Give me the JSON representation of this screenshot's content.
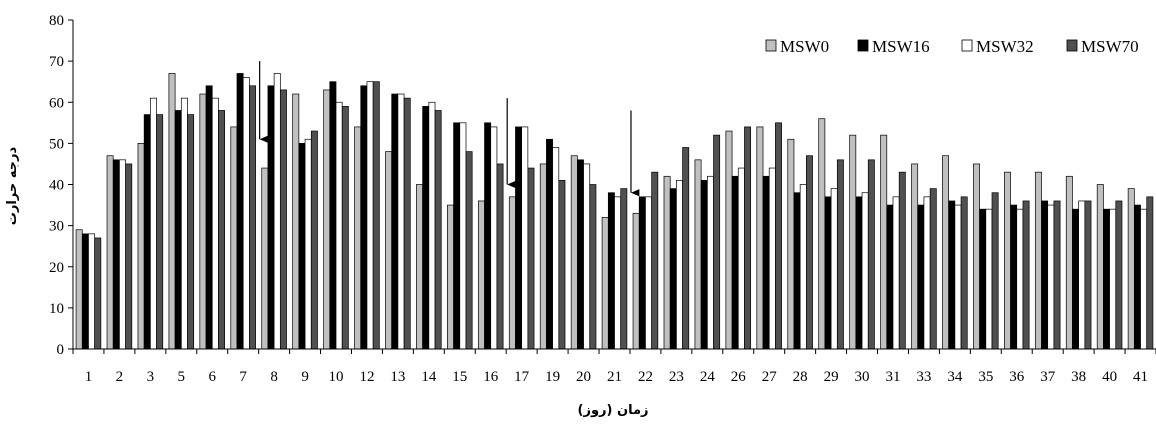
{
  "chart_data": {
    "type": "bar",
    "title": "",
    "xlabel": "زمان (روز)",
    "ylabel": "درجه حرارت",
    "ylim": [
      0,
      80
    ],
    "yticks": [
      0,
      10,
      20,
      30,
      40,
      50,
      60,
      70,
      80
    ],
    "grid": false,
    "legend_position": "top-right",
    "categories": [
      "1",
      "2",
      "3",
      "5",
      "6",
      "7",
      "8",
      "9",
      "10",
      "12",
      "13",
      "14",
      "15",
      "16",
      "17",
      "19",
      "20",
      "21",
      "22",
      "23",
      "24",
      "26",
      "27",
      "28",
      "29",
      "30",
      "31",
      "33",
      "34",
      "35",
      "36",
      "37",
      "38",
      "40",
      "41"
    ],
    "series": [
      {
        "name": "MSW0",
        "color": "#c0c0c0",
        "values": [
          29,
          47,
          50,
          67,
          62,
          54,
          44,
          62,
          63,
          54,
          48,
          40,
          35,
          36,
          37,
          45,
          47,
          32,
          33,
          42,
          46,
          53,
          54,
          51,
          56,
          52,
          52,
          45,
          47,
          45,
          43,
          43,
          42,
          40,
          39
        ]
      },
      {
        "name": "MSW16",
        "color": "#000000",
        "values": [
          28,
          46,
          57,
          58,
          64,
          67,
          64,
          50,
          65,
          64,
          62,
          59,
          55,
          55,
          54,
          51,
          46,
          38,
          37,
          39,
          41,
          42,
          42,
          38,
          37,
          37,
          35,
          35,
          36,
          34,
          35,
          36,
          34,
          34,
          35
        ]
      },
      {
        "name": "MSW32",
        "color": "#ffffff",
        "values": [
          28,
          46,
          61,
          61,
          61,
          66,
          67,
          51,
          60,
          65,
          62,
          60,
          55,
          54,
          54,
          49,
          45,
          37,
          37,
          41,
          42,
          44,
          44,
          40,
          39,
          38,
          37,
          37,
          35,
          34,
          34,
          35,
          36,
          34,
          34
        ]
      },
      {
        "name": "MSW70",
        "color": "#505050",
        "values": [
          27,
          45,
          57,
          57,
          58,
          64,
          63,
          53,
          59,
          65,
          61,
          58,
          48,
          45,
          44,
          41,
          40,
          39,
          43,
          49,
          52,
          54,
          55,
          47,
          46,
          46,
          43,
          39,
          37,
          38,
          36,
          36,
          36,
          36,
          37
        ]
      }
    ],
    "annotations": [
      {
        "type": "arrow",
        "category": "8",
        "from": 70,
        "to": 51
      },
      {
        "type": "arrow",
        "category": "17",
        "from": 61,
        "to": 40
      },
      {
        "type": "arrow",
        "category": "22",
        "from": 58,
        "to": 38
      }
    ]
  }
}
